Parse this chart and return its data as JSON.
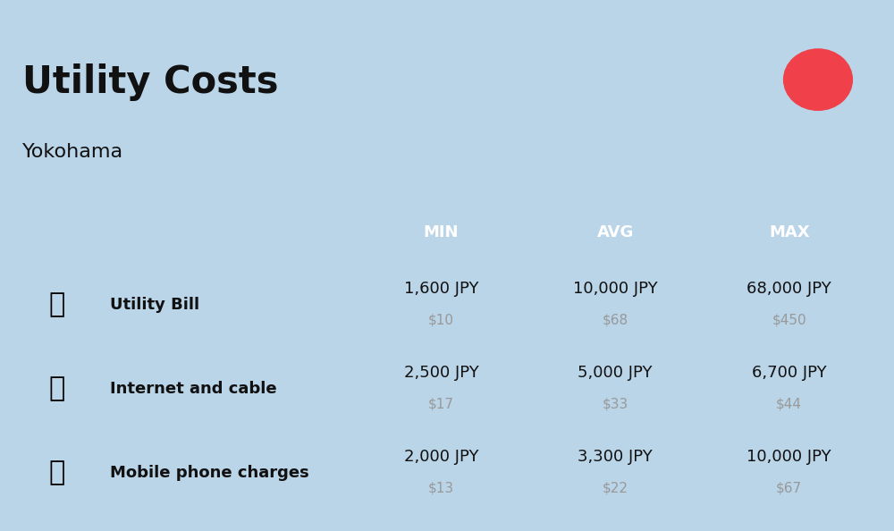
{
  "title": "Utility Costs",
  "subtitle": "Yokohama",
  "background_color": "#bad4e8",
  "header_bg_color": "#4a7fba",
  "header_text_color": "#ffffff",
  "row_bg_light": "#cddff0",
  "row_bg_dark": "#b8cfe4",
  "cell_border_color": "#ffffff",
  "title_color": "#111111",
  "subtitle_color": "#111111",
  "flag_bg": "#f5f5f5",
  "flag_circle_color": "#f0404a",
  "jpy_color": "#111111",
  "usd_color": "#999999",
  "header_labels": [
    "MIN",
    "AVG",
    "MAX"
  ],
  "rows": [
    {
      "label": "Utility Bill",
      "min_jpy": "1,600 JPY",
      "min_usd": "$10",
      "avg_jpy": "10,000 JPY",
      "avg_usd": "$68",
      "max_jpy": "68,000 JPY",
      "max_usd": "$450",
      "icon": "utility"
    },
    {
      "label": "Internet and cable",
      "min_jpy": "2,500 JPY",
      "min_usd": "$17",
      "avg_jpy": "5,000 JPY",
      "avg_usd": "$33",
      "max_jpy": "6,700 JPY",
      "max_usd": "$44",
      "icon": "internet"
    },
    {
      "label": "Mobile phone charges",
      "min_jpy": "2,000 JPY",
      "min_usd": "$13",
      "avg_jpy": "3,300 JPY",
      "avg_usd": "$22",
      "max_jpy": "10,000 JPY",
      "max_usd": "$67",
      "icon": "mobile"
    }
  ],
  "title_fontsize": 30,
  "subtitle_fontsize": 16,
  "header_fontsize": 13,
  "label_fontsize": 13,
  "value_fontsize": 13,
  "usd_fontsize": 11
}
